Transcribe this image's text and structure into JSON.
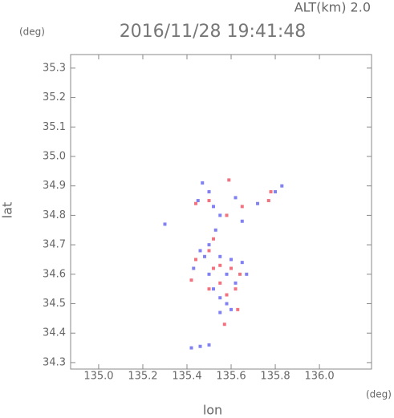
{
  "chart_data": {
    "type": "scatter",
    "top_label": "ALT(km) 2.0",
    "title": "2016/11/28 19:41:48",
    "y_unit": "(deg)",
    "x_unit": "(deg)",
    "ylabel": "lat",
    "xlabel": "lon",
    "xlim": [
      134.873,
      136.236
    ],
    "ylim": [
      34.278,
      35.346
    ],
    "xticks": [
      {
        "value": 135,
        "label": "135.0"
      },
      135.2,
      135.4,
      135.6,
      135.8,
      {
        "value": 136,
        "label": "136.0"
      }
    ],
    "yticks": [
      34.3,
      34.4,
      34.5,
      34.6,
      34.7,
      34.8,
      34.9,
      {
        "value": 35,
        "label": "35.0"
      },
      35.1,
      35.2,
      35.3
    ],
    "series": [
      {
        "color": "#6b6bf0",
        "x": [
          135.47,
          135.5,
          135.45,
          135.52,
          135.55,
          135.62,
          135.65,
          135.72,
          135.8,
          135.83,
          135.5,
          135.46,
          135.55,
          135.6,
          135.65,
          135.43,
          135.5,
          135.58,
          135.62,
          135.52,
          135.55,
          135.58,
          135.55,
          135.6,
          135.42,
          135.46,
          135.5,
          135.3,
          135.67,
          135.53,
          135.48
        ],
        "values": [
          34.91,
          34.88,
          34.85,
          34.83,
          34.8,
          34.86,
          34.78,
          34.84,
          34.88,
          34.9,
          34.7,
          34.68,
          34.66,
          34.65,
          34.64,
          34.62,
          34.6,
          34.6,
          34.57,
          34.55,
          34.52,
          34.5,
          34.47,
          34.48,
          34.35,
          34.355,
          34.36,
          34.77,
          34.6,
          34.75,
          34.66
        ]
      },
      {
        "color": "#ee5a6a",
        "x": [
          135.59,
          135.5,
          135.58,
          135.78,
          135.77,
          135.52,
          135.5,
          135.44,
          135.55,
          135.52,
          135.42,
          135.6,
          135.55,
          135.64,
          135.5,
          135.62,
          135.58,
          135.63,
          135.57,
          135.44,
          135.65
        ],
        "values": [
          34.92,
          34.85,
          34.8,
          34.88,
          34.85,
          34.72,
          34.68,
          34.65,
          34.63,
          34.62,
          34.58,
          34.62,
          34.57,
          34.6,
          34.55,
          34.55,
          34.53,
          34.48,
          34.43,
          34.84,
          34.83
        ]
      }
    ]
  }
}
